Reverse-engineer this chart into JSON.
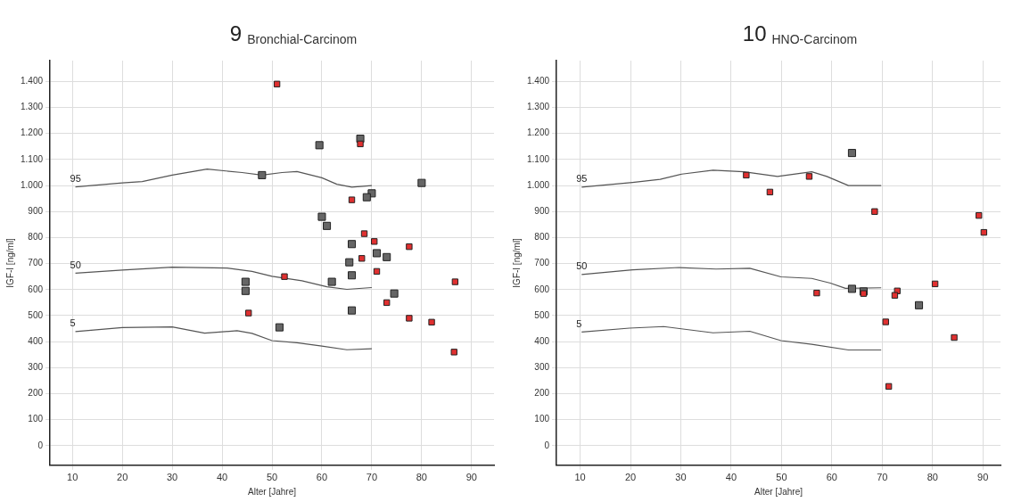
{
  "chart_data": [
    {
      "type": "scatter",
      "title": "9 Bronchial-Carcinom",
      "xlabel": "Alter [Jahre]",
      "ylabel": "IGF-I [ng/ml]",
      "xlim": [
        5.5,
        94.5
      ],
      "ylim": [
        -75,
        1480
      ],
      "xticks": [
        10,
        20,
        30,
        40,
        50,
        60,
        70,
        80,
        90
      ],
      "yticks": [
        {
          "value": 0,
          "label": "0"
        },
        {
          "value": 100,
          "label": "100"
        },
        {
          "value": 200,
          "label": "200"
        },
        {
          "value": 300,
          "label": "300"
        },
        {
          "value": 400,
          "label": "400"
        },
        {
          "value": 500,
          "label": "500"
        },
        {
          "value": 600,
          "label": "600"
        },
        {
          "value": 700,
          "label": "700"
        },
        {
          "value": 800,
          "label": "800"
        },
        {
          "value": 900,
          "label": "900"
        },
        {
          "value": 1000,
          "label": "1.000"
        },
        {
          "value": 1100,
          "label": "1.100"
        },
        {
          "value": 1200,
          "label": "1.200"
        },
        {
          "value": 1300,
          "label": "1.300"
        },
        {
          "value": 1400,
          "label": "1.400"
        }
      ],
      "grid": true,
      "legend": false,
      "series": [
        {
          "name": "95",
          "type": "line",
          "marker": "none",
          "color": "#555555",
          "x": [
            10.6,
            20,
            24,
            30,
            37,
            44,
            48,
            52,
            55,
            60,
            63,
            66,
            70
          ],
          "values": [
            995,
            1010,
            1015,
            1040,
            1063,
            1050,
            1040,
            1050,
            1054,
            1030,
            1005,
            994,
            1000
          ]
        },
        {
          "name": "50",
          "type": "line",
          "marker": "none",
          "color": "#555555",
          "x": [
            10.6,
            20,
            30,
            41,
            46,
            50,
            56,
            61,
            65,
            70
          ],
          "values": [
            663,
            675,
            686,
            683,
            670,
            651,
            634,
            611,
            601,
            608
          ]
        },
        {
          "name": "5",
          "type": "line",
          "marker": "none",
          "color": "#555555",
          "x": [
            10.6,
            20,
            30,
            36.5,
            43,
            46,
            50,
            55,
            60,
            65,
            70
          ],
          "values": [
            439,
            454,
            457,
            433,
            442,
            432,
            404,
            396,
            383,
            369,
            373
          ]
        },
        {
          "marker": "square",
          "color": "#e03030",
          "x": [
            51,
            67.7,
            66,
            68.5,
            70.5,
            77.5,
            68,
            71,
            52.5,
            86.7,
            73,
            45.3,
            77.5,
            82,
            86.5
          ],
          "values": [
            1390,
            1160,
            945,
            815,
            785,
            765,
            720,
            670,
            650,
            630,
            550,
            510,
            490,
            475,
            360
          ]
        },
        {
          "marker": "square",
          "color": "#666666",
          "x": [
            59.5,
            67.7,
            48,
            80,
            70,
            69,
            60,
            61,
            66,
            71,
            73,
            65.5,
            66,
            62,
            44.7,
            44.7,
            74.5,
            66,
            51.5
          ],
          "values": [
            1155,
            1180,
            1040,
            1010,
            970,
            955,
            880,
            845,
            775,
            740,
            725,
            705,
            655,
            630,
            630,
            595,
            585,
            520,
            455
          ]
        }
      ]
    },
    {
      "type": "scatter",
      "title": "10 HNO-Carcinom",
      "xlabel": "Alter [Jahre]",
      "ylabel": "IGF-I [ng/ml]",
      "xlim": [
        5.3,
        93.5
      ],
      "ylim": [
        -75,
        1480
      ],
      "xticks": [
        10,
        20,
        30,
        40,
        50,
        60,
        70,
        80,
        90
      ],
      "yticks": [
        {
          "value": 0,
          "label": "0"
        },
        {
          "value": 100,
          "label": "100"
        },
        {
          "value": 200,
          "label": "200"
        },
        {
          "value": 300,
          "label": "300"
        },
        {
          "value": 400,
          "label": "400"
        },
        {
          "value": 500,
          "label": "500"
        },
        {
          "value": 600,
          "label": "600"
        },
        {
          "value": 700,
          "label": "700"
        },
        {
          "value": 800,
          "label": "800"
        },
        {
          "value": 900,
          "label": "900"
        },
        {
          "value": 1000,
          "label": "1.000"
        },
        {
          "value": 1100,
          "label": "1.100"
        },
        {
          "value": 1200,
          "label": "1.200"
        },
        {
          "value": 1300,
          "label": "1.300"
        },
        {
          "value": 1400,
          "label": "1.400"
        }
      ],
      "grid": true,
      "legend": false,
      "series": [
        {
          "name": "95",
          "type": "line",
          "marker": "none",
          "color": "#555555",
          "x": [
            10.3,
            20.4,
            25.9,
            30.2,
            36.4,
            42.5,
            49.2,
            56,
            59,
            63.3,
            69.8
          ],
          "values": [
            994,
            1012,
            1024,
            1044,
            1059,
            1053,
            1035,
            1053,
            1035,
            1000,
            1000
          ]
        },
        {
          "name": "50",
          "type": "line",
          "marker": "none",
          "color": "#555555",
          "x": [
            10.3,
            20.4,
            29.6,
            37,
            43.7,
            49.9,
            56,
            59.7,
            62.7,
            69.8
          ],
          "values": [
            658,
            676,
            685,
            679,
            682,
            649,
            643,
            625,
            605,
            607
          ]
        },
        {
          "name": "5",
          "type": "line",
          "marker": "none",
          "color": "#555555",
          "x": [
            10.3,
            19.8,
            26.6,
            36.4,
            43.7,
            49.9,
            56,
            63.3,
            69.8
          ],
          "values": [
            437,
            452,
            458,
            434,
            440,
            404,
            390,
            368,
            368
          ]
        },
        {
          "marker": "square",
          "color": "#e03030",
          "x": [
            43,
            47.7,
            55.5,
            68.5,
            89.2,
            90.2,
            57,
            66.3,
            73,
            72.5,
            80.5,
            70.7,
            84.3,
            71.3
          ],
          "values": [
            1040,
            975,
            1035,
            900,
            885,
            820,
            587,
            585,
            595,
            578,
            622,
            476,
            416,
            228
          ]
        },
        {
          "marker": "square",
          "color": "#666666",
          "x": [
            64,
            64,
            66.3,
            77.3
          ],
          "values": [
            1125,
            603,
            593,
            540
          ]
        }
      ]
    }
  ]
}
